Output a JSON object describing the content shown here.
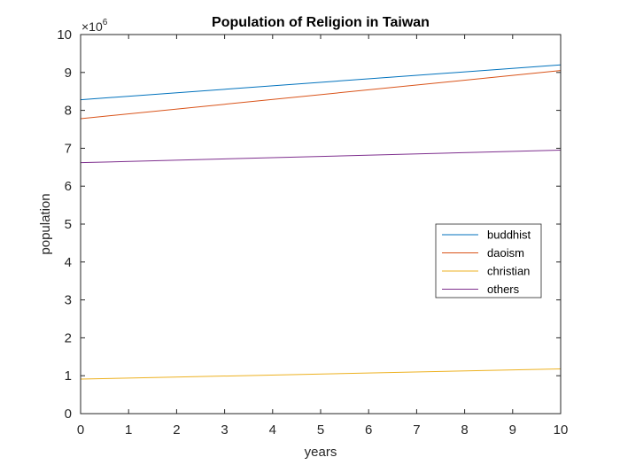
{
  "chart_data": {
    "type": "line",
    "title": "Population of Religion in Taiwan",
    "xlabel": "years",
    "ylabel": "population",
    "x": [
      0,
      10
    ],
    "xlim": [
      0,
      10
    ],
    "ylim": [
      0,
      10
    ],
    "xticks": [
      0,
      1,
      2,
      3,
      4,
      5,
      6,
      7,
      8,
      9,
      10
    ],
    "yticks": [
      0,
      1,
      2,
      3,
      4,
      5,
      6,
      7,
      8,
      9,
      10
    ],
    "y_exponent_base": "×10",
    "y_exponent_power": "6",
    "grid": false,
    "legend_position": "right",
    "series": [
      {
        "name": "buddhist",
        "values": [
          8.28,
          9.2
        ],
        "color": "#0072BD"
      },
      {
        "name": "daoism",
        "values": [
          7.78,
          9.05
        ],
        "color": "#D95319"
      },
      {
        "name": "christian",
        "values": [
          0.91,
          1.18
        ],
        "color": "#EDB120"
      },
      {
        "name": "others",
        "values": [
          6.62,
          6.95
        ],
        "color": "#7E2F8E"
      }
    ]
  }
}
